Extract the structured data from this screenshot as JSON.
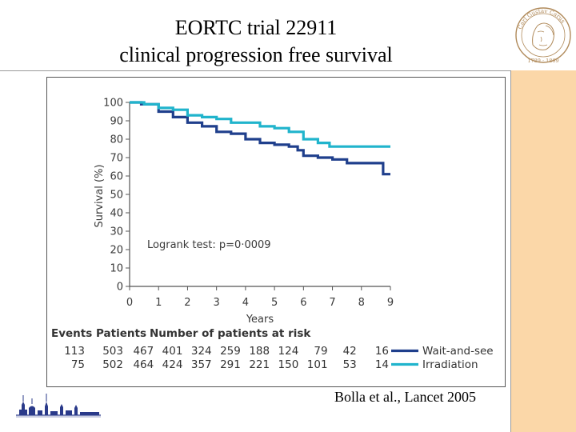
{
  "header": {
    "title_line1": "EORTC trial 22911",
    "title_line2": "clinical progression free survival"
  },
  "seal": {
    "name_text": "Carl Gustav Carus",
    "years": "1789 · 1869"
  },
  "citation": "Bolla et al., Lancet 2005",
  "colors": {
    "wait_and_see": "#1f3f8c",
    "irradiation": "#20b4cc",
    "accent_strip": "#fbd7a8"
  },
  "chart_data": {
    "type": "line",
    "title": "",
    "xlabel": "Years",
    "ylabel": "Survival (%)",
    "xlim": [
      0,
      9
    ],
    "ylim": [
      0,
      100
    ],
    "x_ticks": [
      "0",
      "1",
      "2",
      "3",
      "4",
      "5",
      "6",
      "7",
      "8",
      "9"
    ],
    "y_ticks": [
      "0",
      "10",
      "20",
      "30",
      "40",
      "50",
      "60",
      "70",
      "80",
      "90",
      "100"
    ],
    "annotation": "Logrank test: p=0·0009",
    "series": [
      {
        "name": "Wait-and-see",
        "color": "#1f3f8c",
        "x": [
          0,
          0.4,
          1.0,
          1.5,
          2.0,
          2.5,
          3.0,
          3.5,
          4.0,
          4.5,
          5.0,
          5.5,
          5.8,
          6.0,
          6.5,
          7.0,
          7.5,
          8.0,
          8.7,
          8.75,
          9.0
        ],
        "y": [
          100,
          99,
          95,
          92,
          89,
          87,
          84,
          83,
          80,
          78,
          77,
          76,
          74,
          71,
          70,
          69,
          67,
          67,
          67,
          61,
          61
        ]
      },
      {
        "name": "Irradiation",
        "color": "#20b4cc",
        "x": [
          0,
          0.5,
          1.0,
          1.5,
          2.0,
          2.5,
          3.0,
          3.5,
          4.0,
          4.5,
          5.0,
          5.5,
          6.0,
          6.5,
          6.9,
          7.2,
          9.0
        ],
        "y": [
          100,
          99,
          97,
          96,
          93,
          92,
          91,
          89,
          89,
          87,
          86,
          84,
          80,
          78,
          76,
          76,
          76
        ]
      }
    ],
    "risk_table": {
      "col_events": "Events",
      "col_patients": "Patients",
      "col_risk": "Number of patients at risk",
      "rows": [
        {
          "label": "Wait-and-see",
          "events": "113",
          "patients": "503",
          "at_risk": [
            "467",
            "401",
            "324",
            "259",
            "188",
            "124",
            "79",
            "42",
            "16"
          ]
        },
        {
          "label": "Irradiation",
          "events": "75",
          "patients": "502",
          "at_risk": [
            "464",
            "424",
            "357",
            "291",
            "221",
            "150",
            "101",
            "53",
            "14"
          ]
        }
      ]
    }
  }
}
